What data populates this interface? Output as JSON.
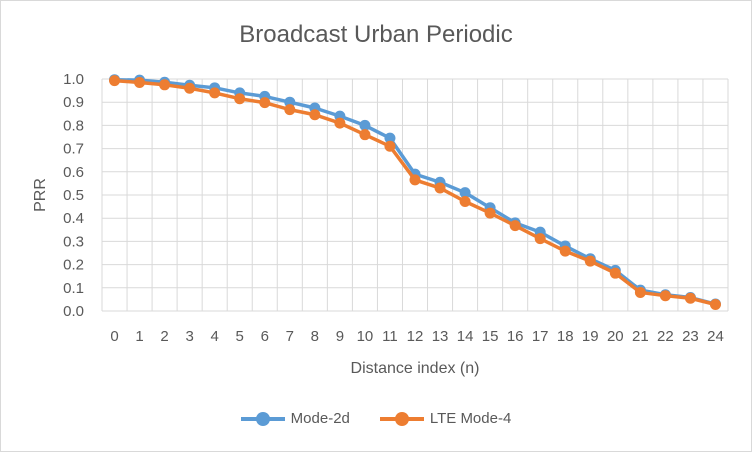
{
  "chart_data": {
    "type": "line",
    "title": "Broadcast Urban Periodic",
    "xlabel": "Distance index (n)",
    "ylabel": "PRR",
    "x": [
      0,
      1,
      2,
      3,
      4,
      5,
      6,
      7,
      8,
      9,
      10,
      11,
      12,
      13,
      14,
      15,
      16,
      17,
      18,
      19,
      20,
      21,
      22,
      23,
      24
    ],
    "ylim": [
      0,
      1.0
    ],
    "yticks": [
      "0.0",
      "0.1",
      "0.2",
      "0.3",
      "0.4",
      "0.5",
      "0.6",
      "0.7",
      "0.8",
      "0.9",
      "1.0"
    ],
    "grid": true,
    "legend_position": "bottom",
    "series": [
      {
        "name": "Mode-2d",
        "color": "#5b9bd5",
        "values": [
          0.997,
          0.995,
          0.986,
          0.973,
          0.962,
          0.94,
          0.925,
          0.9,
          0.875,
          0.84,
          0.8,
          0.745,
          0.59,
          0.555,
          0.51,
          0.445,
          0.38,
          0.34,
          0.28,
          0.225,
          0.175,
          0.09,
          0.07,
          0.058,
          0.03
        ]
      },
      {
        "name": "LTE Mode-4",
        "color": "#ed7d31",
        "values": [
          0.993,
          0.985,
          0.975,
          0.96,
          0.94,
          0.915,
          0.898,
          0.868,
          0.846,
          0.81,
          0.76,
          0.71,
          0.565,
          0.53,
          0.472,
          0.422,
          0.368,
          0.312,
          0.258,
          0.215,
          0.163,
          0.08,
          0.066,
          0.055,
          0.028
        ]
      }
    ]
  }
}
